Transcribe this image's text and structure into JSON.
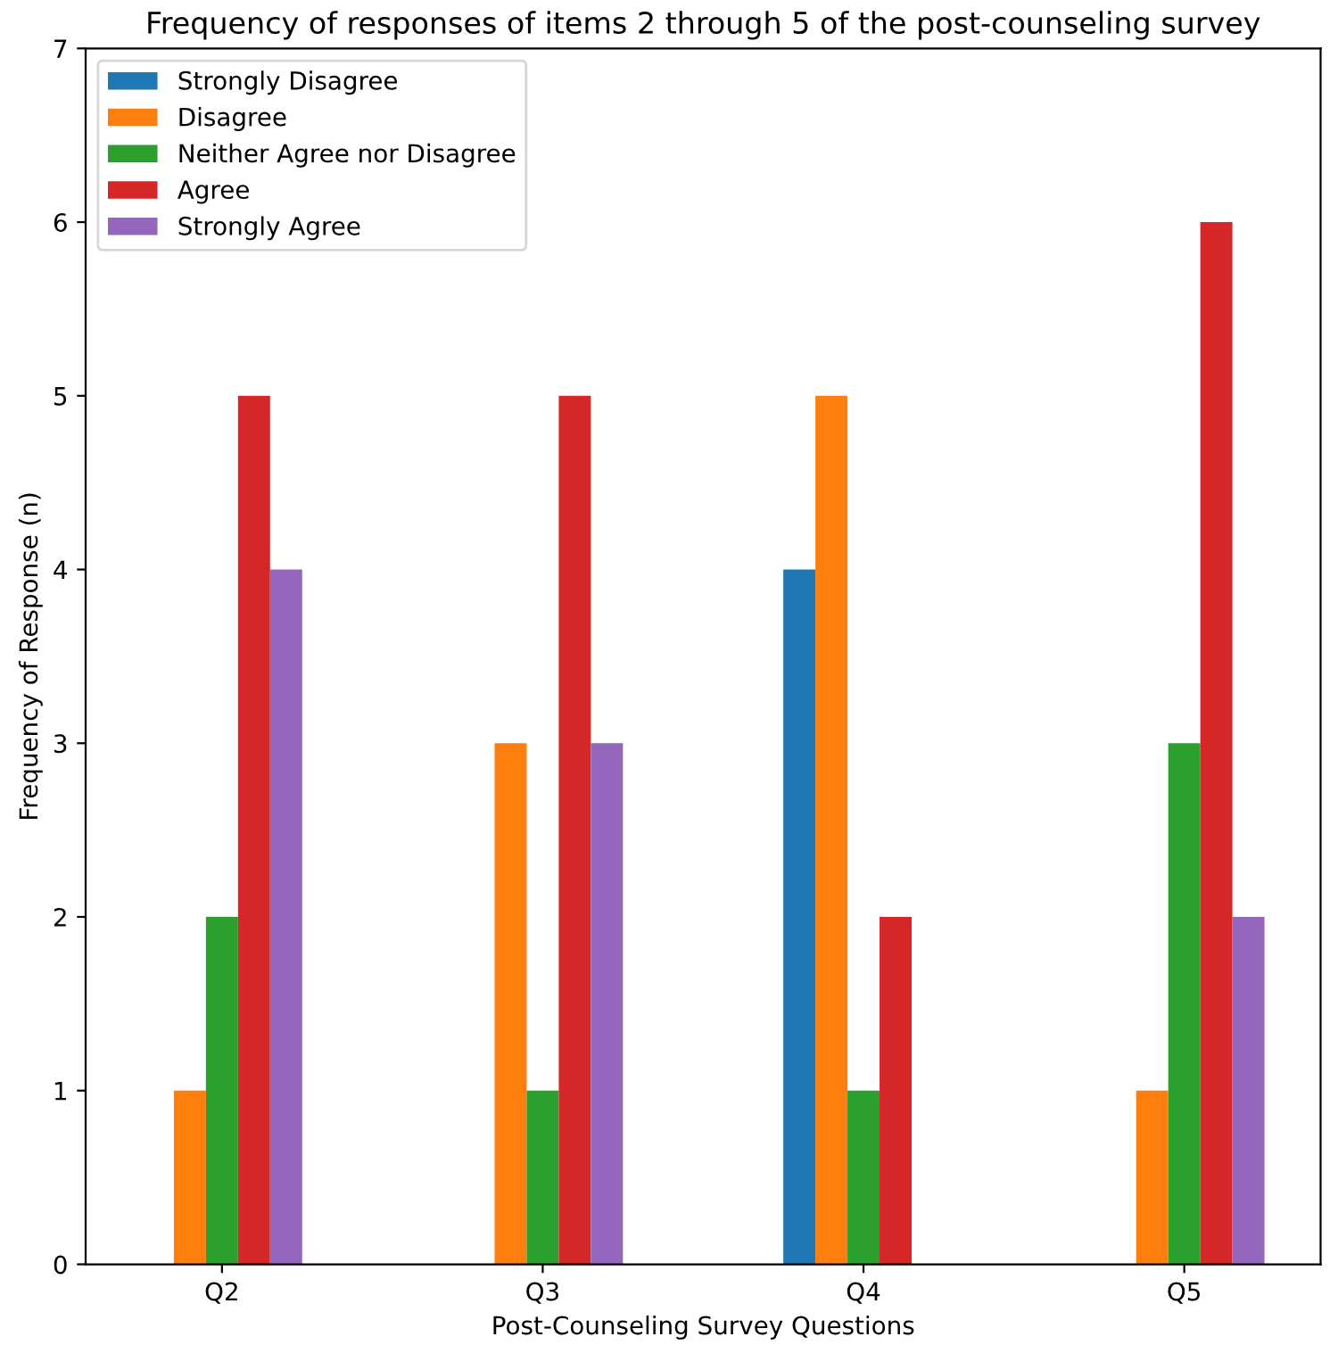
{
  "chart_data": {
    "type": "bar",
    "title": "Frequency of responses of items 2 through 5 of the post-counseling survey",
    "xlabel": "Post-Counseling Survey Questions",
    "ylabel": "Frequency of Response (n)",
    "categories": [
      "Q2",
      "Q3",
      "Q4",
      "Q5"
    ],
    "series": [
      {
        "name": "Strongly Disagree",
        "color": "#1f77b4",
        "values": [
          0,
          0,
          4,
          0
        ]
      },
      {
        "name": "Disagree",
        "color": "#ff7f0e",
        "values": [
          1,
          3,
          5,
          1
        ]
      },
      {
        "name": "Neither Agree nor Disagree",
        "color": "#2ca02c",
        "values": [
          2,
          1,
          1,
          3
        ]
      },
      {
        "name": "Agree",
        "color": "#d62728",
        "values": [
          5,
          5,
          2,
          6
        ]
      },
      {
        "name": "Strongly Agree",
        "color": "#9467bd",
        "values": [
          4,
          3,
          0,
          2
        ]
      }
    ],
    "ylim": [
      0,
      7
    ],
    "yticks": [
      0,
      1,
      2,
      3,
      4,
      5,
      6,
      7
    ],
    "legend": "top left",
    "grid": false
  }
}
